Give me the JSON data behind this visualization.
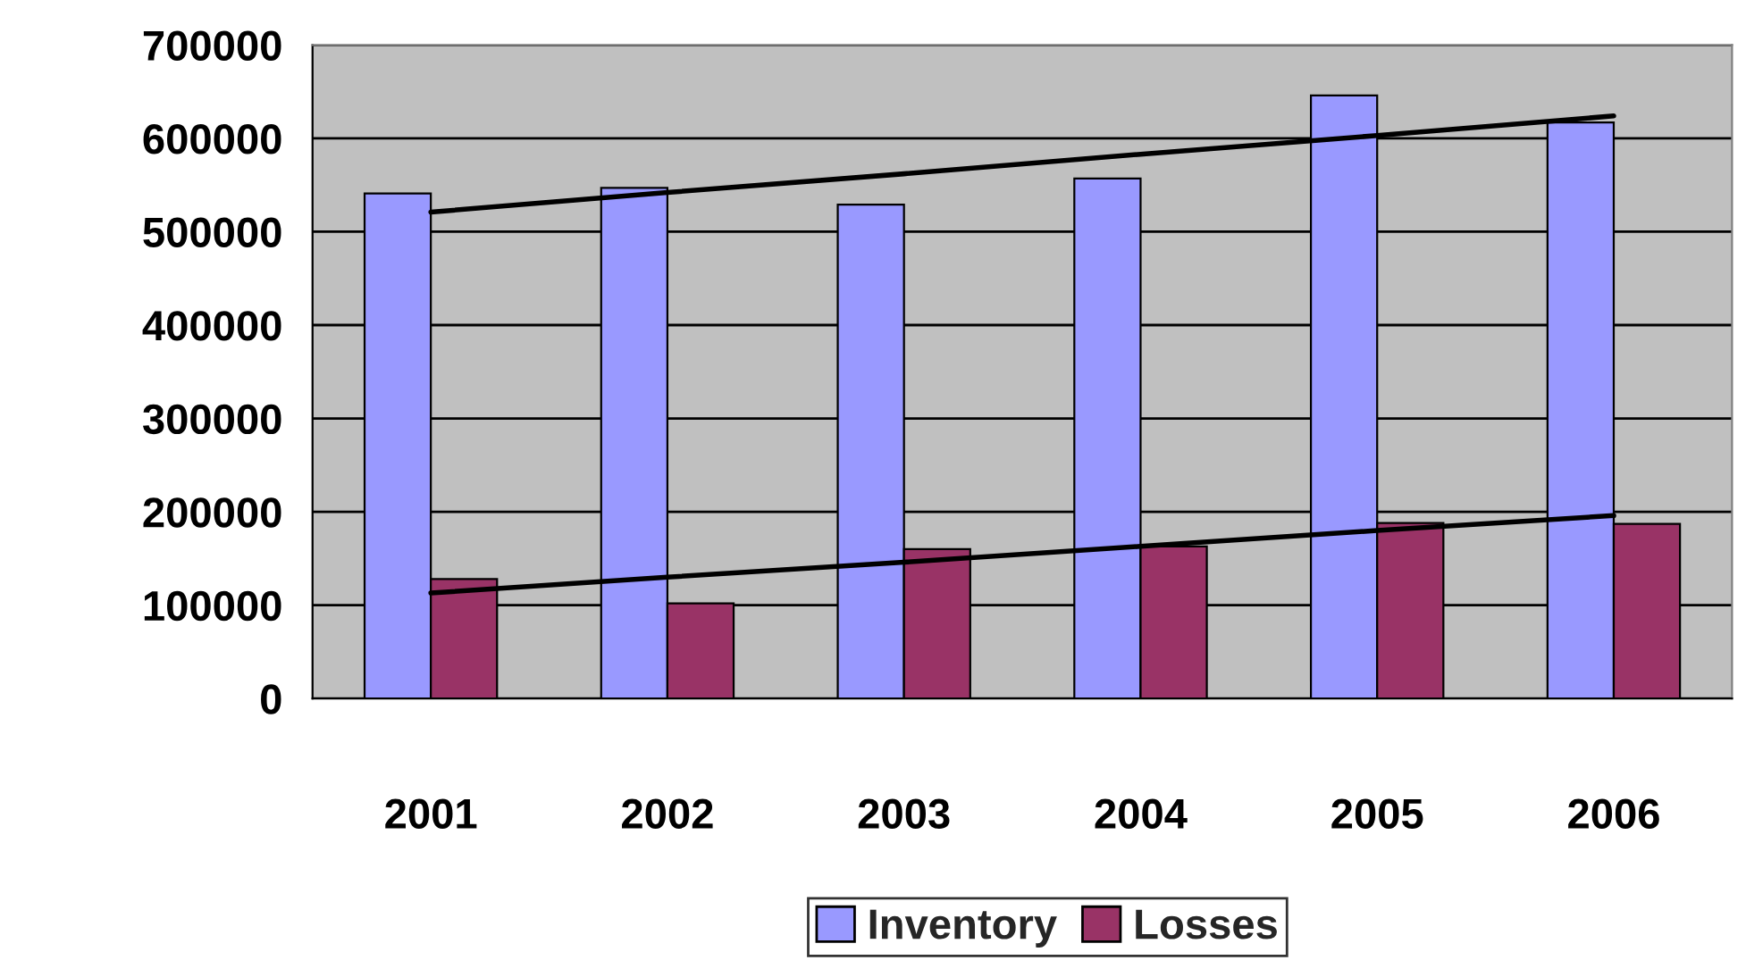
{
  "chart_data": {
    "type": "bar",
    "categories": [
      "2001",
      "2002",
      "2003",
      "2004",
      "2005",
      "2006"
    ],
    "series": [
      {
        "name": "Inventory",
        "color": "#9999ff",
        "values": [
          541000,
          547000,
          529000,
          557000,
          646000,
          617000
        ]
      },
      {
        "name": "Losses",
        "color": "#993366",
        "values": [
          128000,
          102000,
          160000,
          163000,
          188000,
          187000
        ]
      },
      {
        "type": "line",
        "color": "#000000",
        "values": [
          521000,
          542000,
          562000,
          583000,
          603000,
          624000
        ]
      },
      {
        "type": "line",
        "color": "#000000",
        "values": [
          113000,
          130000,
          146000,
          163000,
          180000,
          196000
        ]
      }
    ],
    "ylim": [
      0,
      700000
    ],
    "yticks": [
      0,
      100000,
      200000,
      300000,
      400000,
      500000,
      600000,
      700000
    ],
    "grid": "y",
    "legend": "bottom"
  }
}
